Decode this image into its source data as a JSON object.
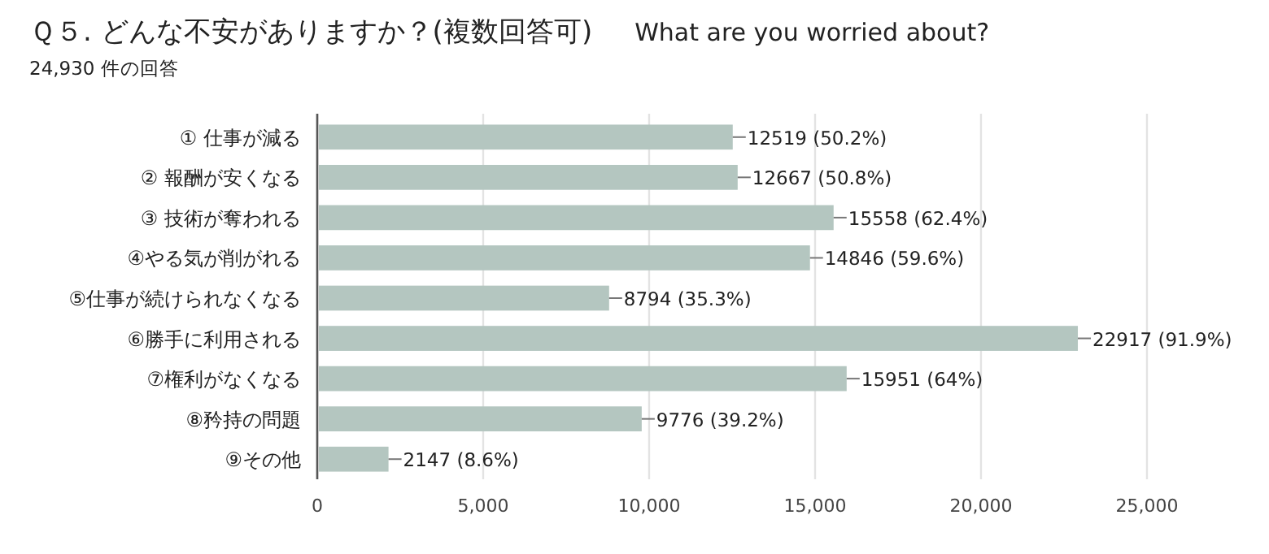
{
  "chart_data": {
    "type": "bar",
    "orientation": "horizontal",
    "title": "Ｑ５. どんな不安がありますか？(複数回答可)",
    "subtitle": "24,930 件の回答",
    "annotations": [
      "What are you worried about?"
    ],
    "categories": [
      "① 仕事が減る",
      "② 報酬が安くなる",
      "③ 技術が奪われる",
      "④やる気が削がれる",
      "⑤仕事が続けられなくなる",
      "⑥勝手に利用される",
      "⑦権利がなくなる",
      "⑧矜持の問題",
      "⑨その他"
    ],
    "values": [
      12519,
      12667,
      15558,
      14846,
      8794,
      22917,
      15951,
      9776,
      2147
    ],
    "value_labels": [
      "12519 (50.2%)",
      "12667 (50.8%)",
      "15558 (62.4%)",
      "14846 (59.6%)",
      "8794 (35.3%)",
      "22917 (91.9%)",
      "15951 (64%)",
      "9776 (39.2%)",
      "2147 (8.6%)"
    ],
    "color": "#b4c6c0",
    "xlim": [
      0,
      25000
    ],
    "xticks": [
      0,
      {
        "value": 5000,
        "label": "5,000"
      },
      {
        "value": 10000,
        "label": "10,000"
      },
      {
        "value": 15000,
        "label": "15,000"
      },
      {
        "value": 20000,
        "label": "20,000"
      },
      {
        "value": 25000,
        "label": "25,000"
      }
    ],
    "grid": "x"
  }
}
